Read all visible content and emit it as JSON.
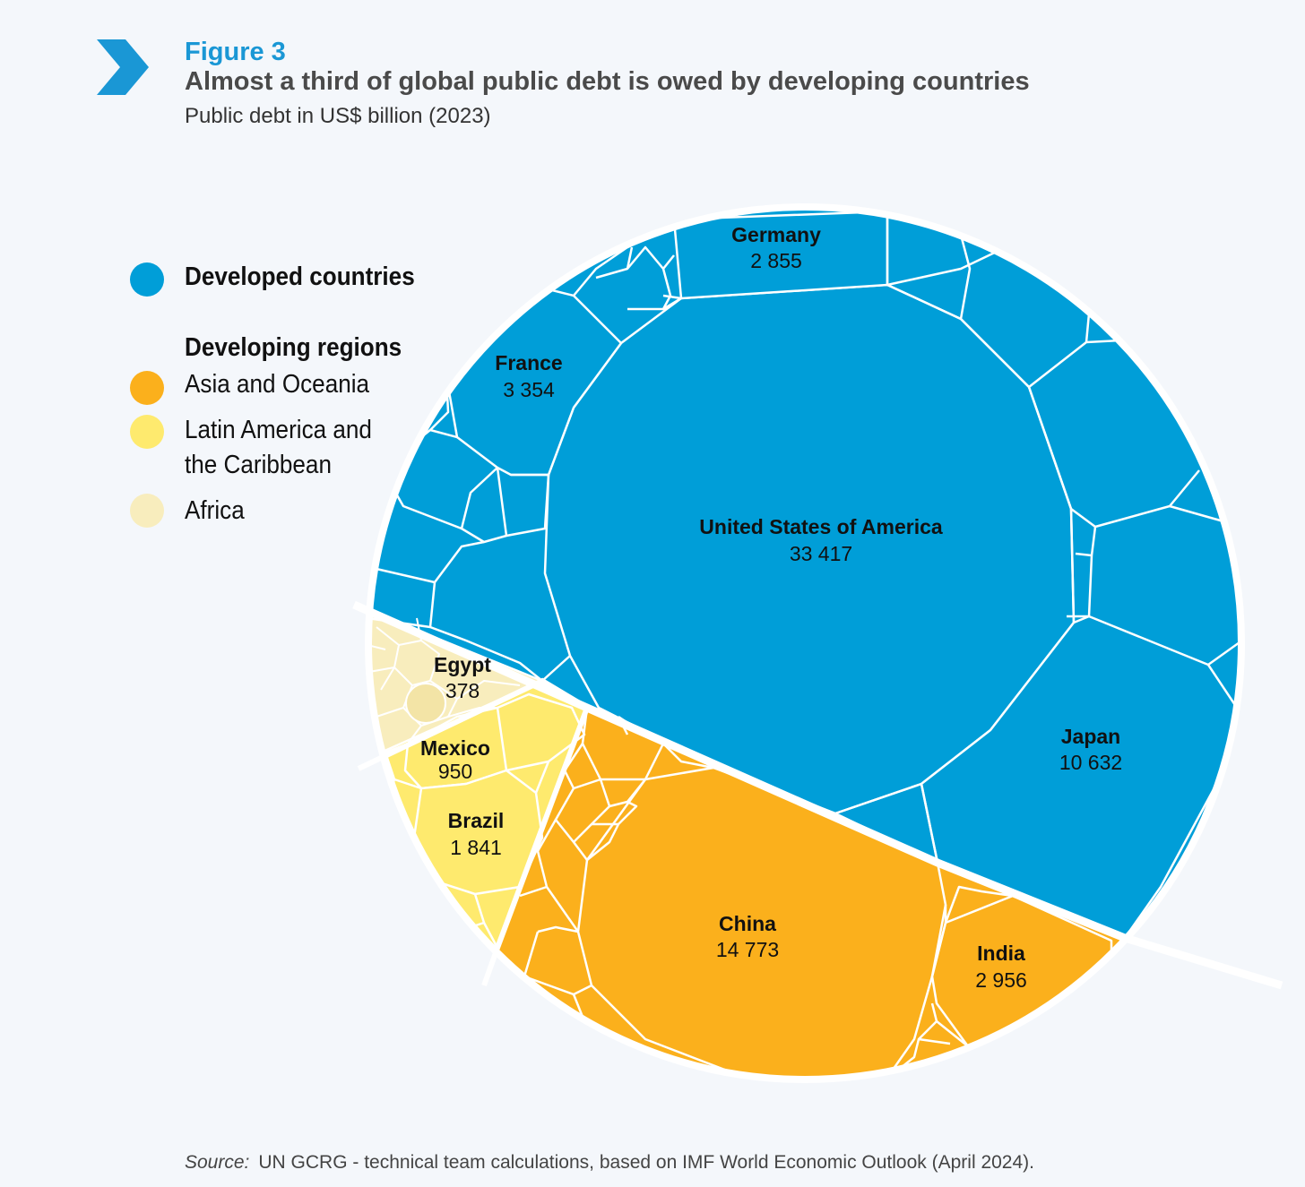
{
  "figure": {
    "label": "Figure 3",
    "title": "Almost a third of global public debt is owed by developing countries",
    "subtitle": "Public debt in US$ billion (2023)"
  },
  "legend": {
    "developed_label": "Developed countries",
    "developing_heading": "Developing regions",
    "asia_label": "Asia and Oceania",
    "latam_label_line1": "Latin America and",
    "latam_label_line2": "the Caribbean",
    "africa_label": "Africa"
  },
  "colors": {
    "developed": "#009ed8",
    "asia": "#fbb01c",
    "latam": "#feea6e",
    "africa": "#f8edbd",
    "accent": "#1a97d5"
  },
  "chart_data": {
    "type": "voronoi-treemap",
    "unit": "US$ billion",
    "year": 2023,
    "series": [
      {
        "name": "United States of America",
        "group": "Developed countries",
        "value": 33417
      },
      {
        "name": "Japan",
        "group": "Developed countries",
        "value": 10632
      },
      {
        "name": "France",
        "group": "Developed countries",
        "value": 3354
      },
      {
        "name": "Germany",
        "group": "Developed countries",
        "value": 2855
      },
      {
        "name": "China",
        "group": "Asia and Oceania",
        "value": 14773
      },
      {
        "name": "India",
        "group": "Asia and Oceania",
        "value": 2956
      },
      {
        "name": "Brazil",
        "group": "Latin America and the Caribbean",
        "value": 1841
      },
      {
        "name": "Mexico",
        "group": "Latin America and the Caribbean",
        "value": 950
      },
      {
        "name": "Egypt",
        "group": "Africa",
        "value": 378
      }
    ],
    "value_labels": {
      "usa": "33 417",
      "japan": "10 632",
      "france": "3 354",
      "germany": "2 855",
      "china": "14 773",
      "india": "2 956",
      "brazil": "1 841",
      "mexico": "950",
      "egypt": "378"
    }
  },
  "source": {
    "prefix": "Source:",
    "text": "UN GCRG - technical team calculations, based on IMF World Economic Outlook (April 2024)."
  }
}
